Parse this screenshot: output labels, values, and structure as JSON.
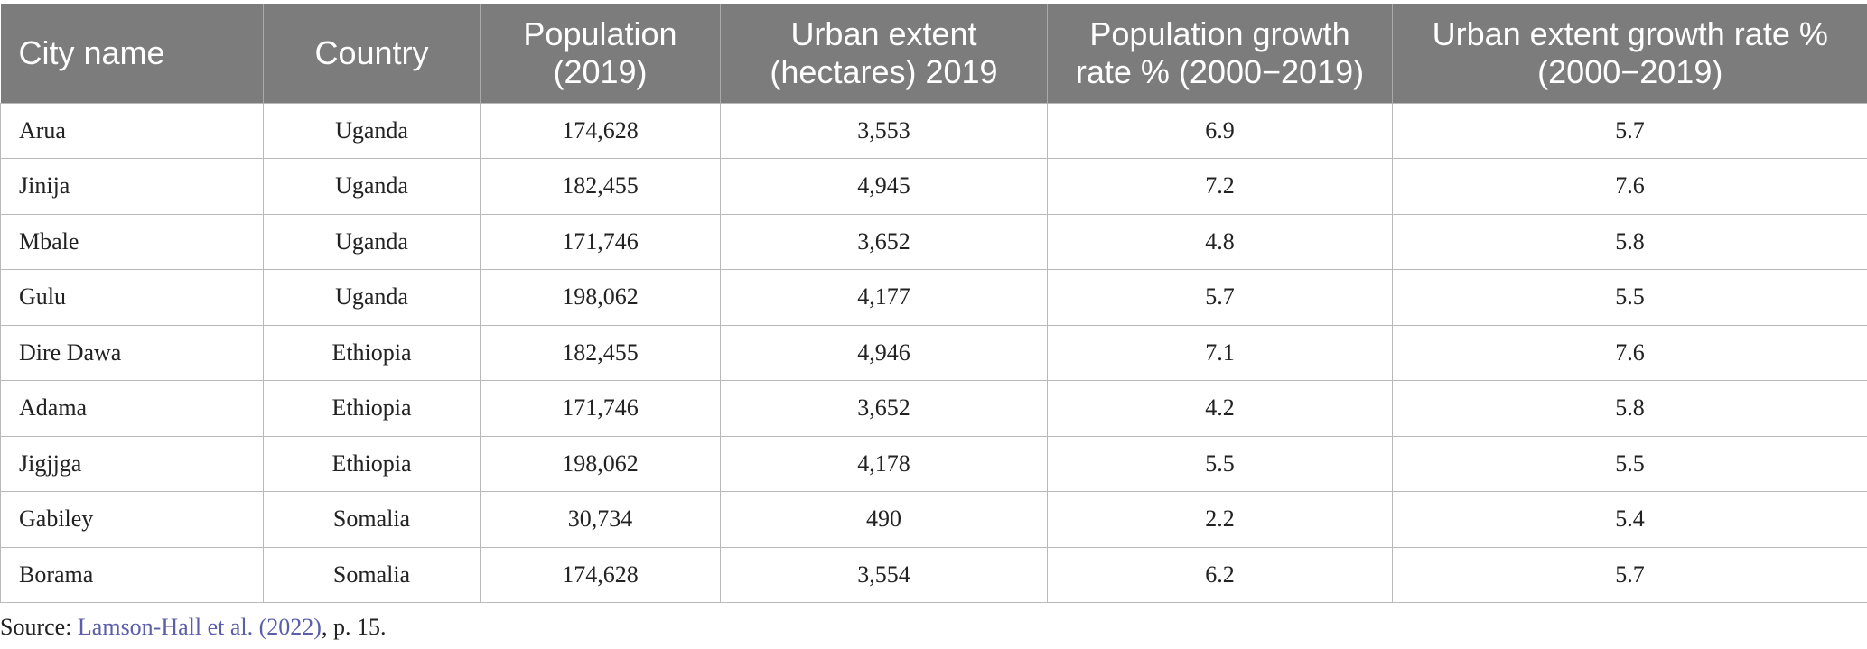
{
  "table": {
    "headers": [
      "City name",
      "Country",
      "Population (2019)",
      "Urban extent (hectares) 2019",
      "Population growth rate % (2000−2019)",
      "Urban extent growth rate % (2000−2019)"
    ],
    "header_lines": [
      [
        "City name"
      ],
      [
        "Country"
      ],
      [
        "Population",
        "(2019)"
      ],
      [
        "Urban extent",
        "(hectares) 2019"
      ],
      [
        "Population growth",
        "rate % (2000−2019)"
      ],
      [
        "Urban extent growth rate %",
        "(2000−2019)"
      ]
    ],
    "rows": [
      [
        "Arua",
        "Uganda",
        "174,628",
        "3,553",
        "6.9",
        "5.7"
      ],
      [
        "Jinija",
        "Uganda",
        "182,455",
        "4,945",
        "7.2",
        "7.6"
      ],
      [
        "Mbale",
        "Uganda",
        "171,746",
        "3,652",
        "4.8",
        "5.8"
      ],
      [
        "Gulu",
        "Uganda",
        "198,062",
        "4,177",
        "5.7",
        "5.5"
      ],
      [
        "Dire Dawa",
        "Ethiopia",
        "182,455",
        "4,946",
        "7.1",
        "7.6"
      ],
      [
        "Adama",
        "Ethiopia",
        "171,746",
        "3,652",
        "4.2",
        "5.8"
      ],
      [
        "Jigjjga",
        "Ethiopia",
        "198,062",
        "4,178",
        "5.5",
        "5.5"
      ],
      [
        "Gabiley",
        "Somalia",
        "30,734",
        "490",
        "2.2",
        "5.4"
      ],
      [
        "Borama",
        "Somalia",
        "174,628",
        "3,554",
        "6.2",
        "5.7"
      ]
    ]
  },
  "source": {
    "prefix": "Source: ",
    "citation": "Lamson-Hall et al. (2022)",
    "suffix": ", p. 15."
  },
  "colors": {
    "header_bg": "#7b7c7b",
    "header_text": "#ffffff",
    "citation_link": "#5b5fa8"
  }
}
